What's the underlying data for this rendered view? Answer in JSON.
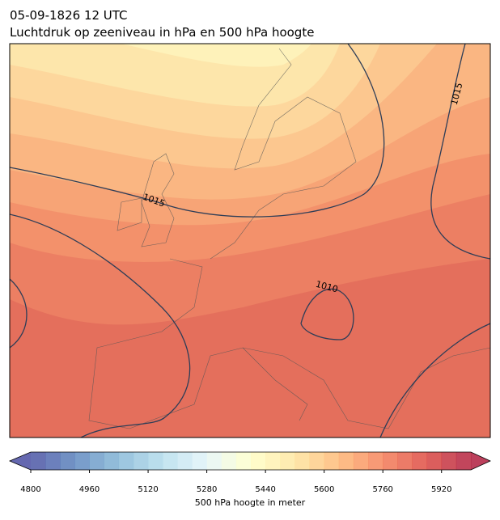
{
  "header": {
    "title": "05-09-1826 12 UTC",
    "subtitle": "Luchtdruk op zeeniveau in hPa en 500 hPa hoogte"
  },
  "isobar_labels": [
    "1015",
    "1015",
    "1010"
  ],
  "colorbar": {
    "label": "500 hPa hoogte in meter",
    "range": [
      4800,
      6000
    ],
    "step": 40,
    "ticks": [
      4800,
      4960,
      5120,
      5280,
      5440,
      5600,
      5760,
      5920
    ],
    "colormap": "RdYlBu_r",
    "alpha": 0.75
  }
}
